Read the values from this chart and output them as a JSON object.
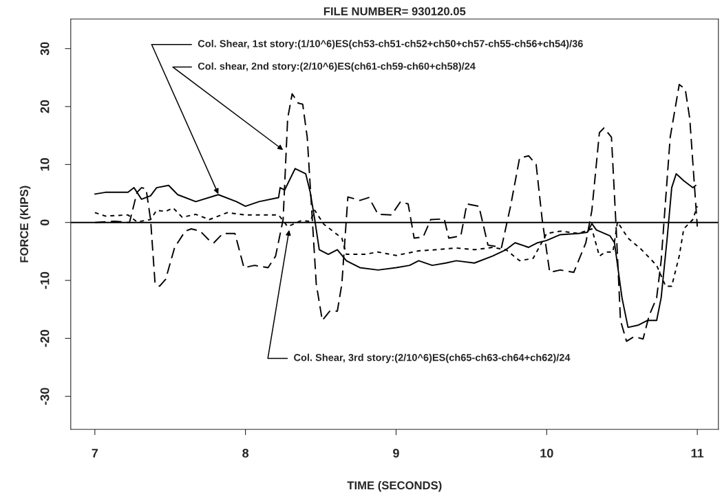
{
  "chart_data": {
    "type": "line",
    "title": "FILE NUMBER= 930120.05",
    "xlabel": "TIME (SECONDS)",
    "ylabel": "FORCE (KIPS)",
    "xlim": [
      6.84,
      11.14
    ],
    "xticks": [
      7,
      8,
      9,
      10,
      11
    ],
    "ylim": [
      -35.7,
      35.1
    ],
    "yticks": [
      -30,
      -20,
      -10,
      0,
      10,
      20,
      30
    ],
    "grid": false,
    "legend": false,
    "marker": "none",
    "ref_lines": [
      {
        "axis": "y",
        "value": 0,
        "color": "#000000",
        "line_style": "solid"
      }
    ],
    "annotations": [
      {
        "text": "Col. Shear, 1st story:(1/10^6)ES(ch53-ch51-ch52+ch50+ch57-ch55-ch56+ch54)/36",
        "x": 7.82,
        "y": 4.9
      },
      {
        "text": "Col. shear, 2nd story:(2/10^6)ES(ch61-ch59-ch60+ch58)/24",
        "x": 8.25,
        "y": 12.5
      },
      {
        "text": "Col. Shear, 3rd story:(2/10^6)ES(ch65-ch63-ch64+ch62)/24",
        "x": 8.29,
        "y": -1.3
      }
    ],
    "series": [
      {
        "color": "#000000",
        "line_style": "solid",
        "x": [
          7.0,
          7.07,
          7.22,
          7.26,
          7.31,
          7.37,
          7.41,
          7.49,
          7.55,
          7.67,
          7.82,
          7.94,
          8.0,
          8.09,
          8.22,
          8.23,
          8.26,
          8.33,
          8.4,
          8.43,
          8.46,
          8.49,
          8.55,
          8.61,
          8.67,
          8.76,
          8.88,
          9.0,
          9.09,
          9.15,
          9.24,
          9.33,
          9.4,
          9.52,
          9.64,
          9.73,
          9.79,
          9.88,
          9.94,
          10.0,
          10.09,
          10.21,
          10.27,
          10.3,
          10.33,
          10.42,
          10.45,
          10.5,
          10.54,
          10.61,
          10.67,
          10.73,
          10.76,
          10.8,
          10.83,
          10.86,
          10.91,
          10.97,
          10.99
        ],
        "values": [
          4.9,
          5.2,
          5.2,
          6.0,
          4.0,
          4.6,
          6.0,
          6.4,
          4.8,
          3.6,
          4.8,
          3.6,
          2.8,
          3.6,
          4.3,
          6.0,
          5.6,
          9.3,
          8.4,
          5.2,
          0.5,
          -4.7,
          -5.5,
          -4.7,
          -6.6,
          -7.8,
          -8.2,
          -7.8,
          -7.4,
          -6.6,
          -7.4,
          -7.0,
          -6.6,
          -7.0,
          -5.8,
          -4.7,
          -3.5,
          -4.3,
          -3.5,
          -3.1,
          -2.1,
          -1.9,
          -1.7,
          -0.2,
          -1.3,
          -2.3,
          -3.5,
          -13,
          -18.1,
          -17.7,
          -16.9,
          -16.9,
          -13,
          -2.7,
          6.0,
          8.4,
          7.2,
          6.0,
          6.4
        ]
      },
      {
        "color": "#000000",
        "line_style": "dashed",
        "x": [
          7.0,
          7.13,
          7.23,
          7.28,
          7.31,
          7.34,
          7.37,
          7.4,
          7.43,
          7.47,
          7.53,
          7.6,
          7.64,
          7.7,
          7.76,
          7.79,
          7.85,
          7.93,
          7.99,
          8.06,
          8.15,
          8.2,
          8.25,
          8.28,
          8.31,
          8.35,
          8.38,
          8.41,
          8.44,
          8.47,
          8.51,
          8.56,
          8.61,
          8.64,
          8.68,
          8.76,
          8.82,
          8.88,
          8.97,
          9.03,
          9.08,
          9.12,
          9.18,
          9.23,
          9.32,
          9.35,
          9.43,
          9.47,
          9.55,
          9.61,
          9.7,
          9.76,
          9.82,
          9.88,
          9.93,
          9.97,
          10.02,
          10.09,
          10.18,
          10.26,
          10.3,
          10.35,
          10.38,
          10.43,
          10.46,
          10.49,
          10.53,
          10.58,
          10.64,
          10.68,
          10.73,
          10.76,
          10.82,
          10.88,
          10.92,
          10.95,
          11.0
        ],
        "values": [
          0,
          0.2,
          0,
          5.2,
          6.0,
          5.8,
          0.5,
          -10.6,
          -11,
          -9.8,
          -4.3,
          -1.5,
          -1.1,
          -1.5,
          -3.1,
          -3.5,
          -1.9,
          -1.9,
          -7.8,
          -7.4,
          -7.8,
          -5.8,
          0.5,
          17.9,
          22.2,
          20.6,
          20.4,
          14.7,
          2.1,
          -10.6,
          -16.9,
          -15.3,
          -15.3,
          -10.6,
          4.4,
          3.8,
          4.3,
          1.4,
          1.3,
          3.6,
          3.2,
          -2.7,
          -2.5,
          0.5,
          0.6,
          -2.7,
          -2.3,
          3.2,
          2.8,
          -3.9,
          -4.3,
          2.8,
          11.1,
          11.5,
          10.0,
          0.5,
          -8.6,
          -8.2,
          -8.6,
          -3.5,
          2.1,
          15.5,
          16.3,
          14.7,
          -0.3,
          -16.9,
          -20.5,
          -19.7,
          -20.1,
          -16.1,
          -13,
          -6.6,
          14.7,
          23.8,
          23.0,
          17.9,
          -0.7
        ]
      },
      {
        "color": "#000000",
        "line_style": "dotted",
        "x": [
          7.0,
          7.07,
          7.22,
          7.28,
          7.37,
          7.41,
          7.47,
          7.52,
          7.58,
          7.67,
          7.76,
          7.88,
          8.0,
          8.22,
          8.28,
          8.37,
          8.43,
          8.46,
          8.52,
          8.58,
          8.64,
          8.67,
          8.79,
          8.88,
          9.0,
          9.15,
          9.27,
          9.4,
          9.52,
          9.64,
          9.73,
          9.82,
          9.91,
          10.0,
          10.09,
          10.21,
          10.3,
          10.35,
          10.39,
          10.44,
          10.47,
          10.54,
          10.63,
          10.73,
          10.79,
          10.83,
          10.88,
          10.91,
          10.97,
          11.0
        ],
        "values": [
          1.7,
          1.1,
          1.3,
          0.1,
          0.5,
          2.1,
          1.9,
          2.5,
          0.9,
          1.4,
          0.5,
          1.7,
          1.3,
          1.3,
          -0.7,
          0.3,
          0.2,
          2.1,
          -0.3,
          -1.5,
          -2.7,
          -5.5,
          -5.5,
          -5.1,
          -5.7,
          -4.9,
          -4.7,
          -4.4,
          -4.7,
          -4.3,
          -4.7,
          -6.6,
          -6.2,
          -1.9,
          -1.5,
          -1.9,
          -1.1,
          -5.8,
          -5.1,
          -5.1,
          0.1,
          -2.7,
          -4.7,
          -7.4,
          -11,
          -11,
          -5.8,
          -1.1,
          0.5,
          2.8
        ]
      }
    ]
  }
}
